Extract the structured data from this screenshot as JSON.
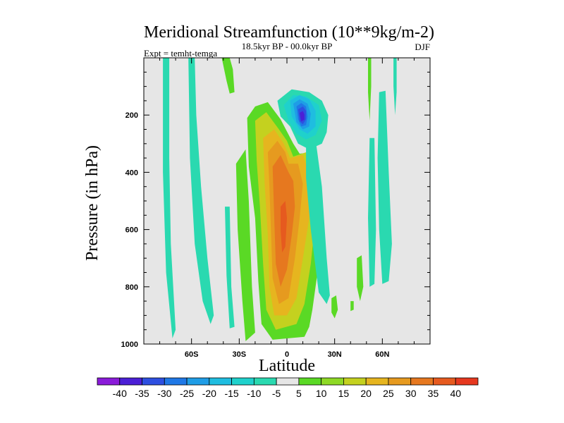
{
  "chart_data": {
    "type": "heatmap",
    "title": "Meridional Streamfunction (10**9kg/m-2)",
    "subtitle": "18.5kyr BP - 00.0kyr BP",
    "experiment_label": "Expt = temht-temga",
    "season_label": "DJF",
    "xlabel": "Latitude",
    "ylabel": "Pressure (in hPa)",
    "xlim": [
      -90,
      90
    ],
    "ylim": [
      1000,
      0
    ],
    "y_inverted": true,
    "x_ticks": [
      {
        "value": -60,
        "label": "60S"
      },
      {
        "value": -30,
        "label": "30S"
      },
      {
        "value": 0,
        "label": "0"
      },
      {
        "value": 30,
        "label": "30N"
      },
      {
        "value": 60,
        "label": "60N"
      }
    ],
    "y_ticks": [
      {
        "value": 200,
        "label": "200"
      },
      {
        "value": 400,
        "label": "400"
      },
      {
        "value": 600,
        "label": "600"
      },
      {
        "value": 800,
        "label": "800"
      },
      {
        "value": 1000,
        "label": "1000"
      }
    ],
    "background_color": "#e6e6e6",
    "colorbar": {
      "labels": [
        "-40",
        "-35",
        "-30",
        "-25",
        "-20",
        "-15",
        "-10",
        "-5",
        "5",
        "10",
        "15",
        "20",
        "25",
        "30",
        "35",
        "40"
      ],
      "colors": [
        "#8a1bd9",
        "#4b1fd6",
        "#2e4fe0",
        "#1f78e6",
        "#1f9de6",
        "#1fbde0",
        "#1fd1cc",
        "#2ad9b0",
        "#e6e6e6",
        "#5ad925",
        "#8ed925",
        "#c4d11f",
        "#e6b51f",
        "#e69a1f",
        "#e6781f",
        "#e65a1f",
        "#e6381f"
      ]
    },
    "contours": [
      {
        "name": "sh-high-green-band",
        "value": 10,
        "points": [
          [
            -41,
            0
          ],
          [
            -36,
            0
          ],
          [
            -34,
            40
          ],
          [
            -33,
            120
          ],
          [
            -36,
            125
          ],
          [
            -38,
            80
          ]
        ]
      },
      {
        "name": "sh-polar-teal-band",
        "value": -5,
        "points": [
          [
            -62,
            0
          ],
          [
            -58,
            0
          ],
          [
            -57,
            200
          ],
          [
            -54,
            450
          ],
          [
            -50,
            700
          ],
          [
            -46,
            900
          ],
          [
            -48,
            930
          ],
          [
            -53,
            850
          ],
          [
            -58,
            650
          ],
          [
            -61,
            350
          ]
        ]
      },
      {
        "name": "sh-far-teal-band",
        "value": -5,
        "points": [
          [
            -78,
            0
          ],
          [
            -74,
            0
          ],
          [
            -74,
            350
          ],
          [
            -73,
            650
          ],
          [
            -70,
            950
          ],
          [
            -72,
            980
          ],
          [
            -76,
            750
          ],
          [
            -78,
            400
          ]
        ]
      },
      {
        "name": "sh-midlat-green-band",
        "value": 10,
        "points": [
          [
            -32,
            370
          ],
          [
            -26,
            320
          ],
          [
            -24,
            500
          ],
          [
            -22,
            800
          ],
          [
            -20,
            960
          ],
          [
            -26,
            990
          ],
          [
            -28,
            850
          ],
          [
            -31,
            600
          ]
        ]
      },
      {
        "name": "sh-teal-sliver",
        "value": -5,
        "points": [
          [
            -39,
            520
          ],
          [
            -36,
            520
          ],
          [
            -35,
            800
          ],
          [
            -33,
            940
          ],
          [
            -36,
            945
          ],
          [
            -38,
            760
          ]
        ]
      },
      {
        "name": "tropical-cell-green",
        "value": 10,
        "points": [
          [
            -25,
            210
          ],
          [
            -20,
            170
          ],
          [
            -12,
            155
          ],
          [
            -4,
            215
          ],
          [
            4,
            300
          ],
          [
            8,
            335
          ],
          [
            16,
            330
          ],
          [
            21,
            420
          ],
          [
            22,
            560
          ],
          [
            20,
            720
          ],
          [
            16,
            880
          ],
          [
            14,
            940
          ],
          [
            11,
            975
          ],
          [
            -9,
            985
          ],
          [
            -16,
            930
          ],
          [
            -18,
            780
          ],
          [
            -20,
            560
          ],
          [
            -24,
            380
          ]
        ]
      },
      {
        "name": "tropical-cell-yellow",
        "value": 20,
        "points": [
          [
            -20,
            220
          ],
          [
            -13,
            190
          ],
          [
            -5,
            250
          ],
          [
            0,
            290
          ],
          [
            4,
            345
          ],
          [
            12,
            330
          ],
          [
            18,
            420
          ],
          [
            18,
            560
          ],
          [
            15,
            720
          ],
          [
            11,
            860
          ],
          [
            6,
            930
          ],
          [
            -7,
            950
          ],
          [
            -13,
            880
          ],
          [
            -15,
            720
          ],
          [
            -17,
            520
          ],
          [
            -19,
            360
          ]
        ]
      },
      {
        "name": "tropical-cell-gold",
        "value": 25,
        "points": [
          [
            -15,
            280
          ],
          [
            -8,
            250
          ],
          [
            -2,
            300
          ],
          [
            2,
            350
          ],
          [
            10,
            340
          ],
          [
            15,
            420
          ],
          [
            14,
            560
          ],
          [
            10,
            700
          ],
          [
            6,
            840
          ],
          [
            0,
            900
          ],
          [
            -8,
            900
          ],
          [
            -11,
            800
          ],
          [
            -12,
            620
          ],
          [
            -14,
            440
          ]
        ]
      },
      {
        "name": "tropical-cell-orange",
        "value": 30,
        "points": [
          [
            -12,
            330
          ],
          [
            -6,
            290
          ],
          [
            -1,
            330
          ],
          [
            1,
            370
          ],
          [
            7,
            370
          ],
          [
            10,
            440
          ],
          [
            8,
            560
          ],
          [
            5,
            700
          ],
          [
            1,
            840
          ],
          [
            -5,
            860
          ],
          [
            -9,
            770
          ],
          [
            -10,
            610
          ],
          [
            -11,
            450
          ]
        ]
      },
      {
        "name": "tropical-cell-deep-orange",
        "value": 35,
        "points": [
          [
            -9,
            380
          ],
          [
            -4,
            340
          ],
          [
            1,
            400
          ],
          [
            4,
            430
          ],
          [
            5,
            520
          ],
          [
            3,
            620
          ],
          [
            0,
            740
          ],
          [
            -4,
            800
          ],
          [
            -7,
            720
          ],
          [
            -8,
            560
          ]
        ]
      },
      {
        "name": "tropical-cell-core",
        "value": 40,
        "points": [
          [
            -4,
            520
          ],
          [
            -1,
            500
          ],
          [
            0,
            560
          ],
          [
            -1,
            660
          ],
          [
            -3,
            680
          ],
          [
            -4,
            600
          ]
        ]
      },
      {
        "name": "upper-cell-teal",
        "value": -5,
        "points": [
          [
            -6,
            150
          ],
          [
            3,
            110
          ],
          [
            14,
            120
          ],
          [
            22,
            150
          ],
          [
            26,
            200
          ],
          [
            25,
            260
          ],
          [
            22,
            300
          ],
          [
            14,
            320
          ],
          [
            7,
            300
          ],
          [
            2,
            240
          ],
          [
            -4,
            205
          ]
        ]
      },
      {
        "name": "upper-cell-cyan",
        "value": -10,
        "points": [
          [
            -2,
            165
          ],
          [
            4,
            130
          ],
          [
            12,
            135
          ],
          [
            20,
            165
          ],
          [
            22,
            220
          ],
          [
            18,
            270
          ],
          [
            12,
            285
          ],
          [
            6,
            265
          ],
          [
            1,
            220
          ]
        ]
      },
      {
        "name": "upper-cell-lightblue",
        "value": -15,
        "points": [
          [
            2,
            150
          ],
          [
            8,
            130
          ],
          [
            14,
            145
          ],
          [
            18,
            185
          ],
          [
            18,
            240
          ],
          [
            13,
            265
          ],
          [
            8,
            250
          ],
          [
            3,
            205
          ]
        ]
      },
      {
        "name": "upper-cell-blue",
        "value": -20,
        "points": [
          [
            4,
            160
          ],
          [
            8,
            145
          ],
          [
            13,
            160
          ],
          [
            15,
            195
          ],
          [
            14,
            240
          ],
          [
            10,
            250
          ],
          [
            6,
            225
          ]
        ]
      },
      {
        "name": "upper-cell-midblue",
        "value": -25,
        "points": [
          [
            6,
            170
          ],
          [
            9,
            158
          ],
          [
            12,
            170
          ],
          [
            13,
            205
          ],
          [
            12,
            235
          ],
          [
            9,
            240
          ],
          [
            7,
            215
          ]
        ]
      },
      {
        "name": "upper-cell-darkblue",
        "value": -30,
        "points": [
          [
            7,
            180
          ],
          [
            10,
            170
          ],
          [
            12,
            185
          ],
          [
            12,
            215
          ],
          [
            10,
            232
          ],
          [
            8,
            222
          ]
        ]
      },
      {
        "name": "upper-cell-indigo",
        "value": -35,
        "points": [
          [
            8,
            192
          ],
          [
            10,
            186
          ],
          [
            11,
            198
          ],
          [
            11,
            216
          ],
          [
            9,
            222
          ],
          [
            8.5,
            210
          ]
        ]
      },
      {
        "name": "nh-teal-band",
        "value": -5,
        "points": [
          [
            12,
            290
          ],
          [
            18,
            285
          ],
          [
            22,
            450
          ],
          [
            25,
            700
          ],
          [
            27,
            830
          ],
          [
            25,
            860
          ],
          [
            20,
            820
          ],
          [
            15,
            600
          ],
          [
            12,
            420
          ]
        ]
      },
      {
        "name": "nh-green-blob",
        "value": 10,
        "points": [
          [
            28,
            840
          ],
          [
            31,
            830
          ],
          [
            32,
            880
          ],
          [
            30,
            910
          ],
          [
            28,
            890
          ]
        ]
      },
      {
        "name": "nh-green-dot",
        "value": 10,
        "points": [
          [
            40,
            850
          ],
          [
            42,
            850
          ],
          [
            42,
            880
          ],
          [
            40,
            885
          ]
        ]
      },
      {
        "name": "nh-green-band-upper",
        "value": 10,
        "points": [
          [
            51,
            0
          ],
          [
            53,
            0
          ],
          [
            53,
            100
          ],
          [
            52,
            220
          ],
          [
            51,
            120
          ]
        ]
      },
      {
        "name": "nh-green-band-mid",
        "value": 10,
        "points": [
          [
            44,
            700
          ],
          [
            47,
            690
          ],
          [
            48,
            800
          ],
          [
            46,
            850
          ],
          [
            44,
            800
          ]
        ]
      },
      {
        "name": "nh-teal-band-east",
        "value": -5,
        "points": [
          [
            58,
            120
          ],
          [
            62,
            115
          ],
          [
            64,
            400
          ],
          [
            66,
            650
          ],
          [
            64,
            780
          ],
          [
            60,
            790
          ],
          [
            58,
            600
          ],
          [
            57,
            350
          ]
        ]
      },
      {
        "name": "nh-teal-thin-east",
        "value": -5,
        "points": [
          [
            67,
            0
          ],
          [
            69,
            0
          ],
          [
            69,
            120
          ],
          [
            68,
            200
          ],
          [
            67,
            100
          ]
        ]
      },
      {
        "name": "nh-teal-mid-east",
        "value": -5,
        "points": [
          [
            52,
            280
          ],
          [
            55,
            280
          ],
          [
            56,
            600
          ],
          [
            55,
            790
          ],
          [
            52,
            800
          ],
          [
            51,
            560
          ]
        ]
      },
      {
        "name": "nh-teal-small",
        "value": -5,
        "points": [
          [
            59,
            180
          ],
          [
            61,
            180
          ],
          [
            61,
            240
          ],
          [
            59,
            240
          ]
        ]
      }
    ]
  }
}
